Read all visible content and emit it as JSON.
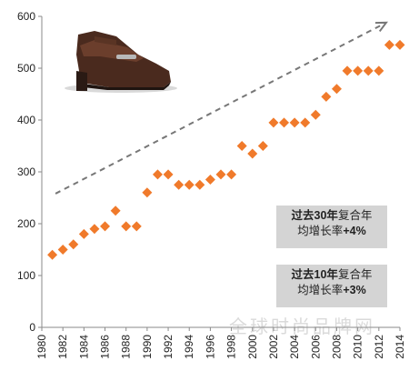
{
  "chart_data": {
    "type": "scatter",
    "title": "",
    "xlabel": "",
    "ylabel": "",
    "xlim": [
      1980,
      2014
    ],
    "ylim": [
      0,
      600
    ],
    "x_ticks": [
      "1980",
      "1982",
      "1984",
      "1986",
      "1988",
      "1990",
      "1992",
      "1994",
      "1996",
      "1998",
      "2000",
      "2002",
      "2004",
      "2006",
      "2008",
      "2010",
      "2012",
      "2014"
    ],
    "y_ticks": [
      "0",
      "100",
      "200",
      "300",
      "400",
      "500",
      "600"
    ],
    "grid": false,
    "marker_color": "#f07a2b",
    "marker_shape": "diamond",
    "trend_arrow_color": "#777777",
    "series": [
      {
        "x": [
          1981,
          1982,
          1983,
          1984,
          1985,
          1986,
          1987,
          1988,
          1989,
          1990,
          1991,
          1992,
          1993,
          1994,
          1995,
          1996,
          1997,
          1998,
          1999,
          2000,
          2001,
          2002,
          2003,
          2004,
          2005,
          2006,
          2007,
          2008,
          2009,
          2010,
          2011,
          2012,
          2013,
          2014
        ],
        "values": [
          140,
          150,
          160,
          180,
          190,
          195,
          225,
          195,
          195,
          260,
          295,
          295,
          275,
          275,
          275,
          285,
          295,
          295,
          350,
          335,
          350,
          395,
          395,
          395,
          395,
          410,
          445,
          460,
          495,
          495,
          495,
          495,
          545,
          545
        ]
      }
    ],
    "annotations": [
      {
        "line1_bold": "过去30年",
        "line1_rest": "复合年",
        "line2_rest": "均增长率",
        "line2_bold": "+4%"
      },
      {
        "line1_bold": "过去10年",
        "line1_rest": "复合年",
        "line2_rest": "均增长率",
        "line2_bold": "+3%"
      }
    ]
  },
  "watermark": "全球时尚品牌网",
  "shoe_icon": "loafer-shoe-icon"
}
